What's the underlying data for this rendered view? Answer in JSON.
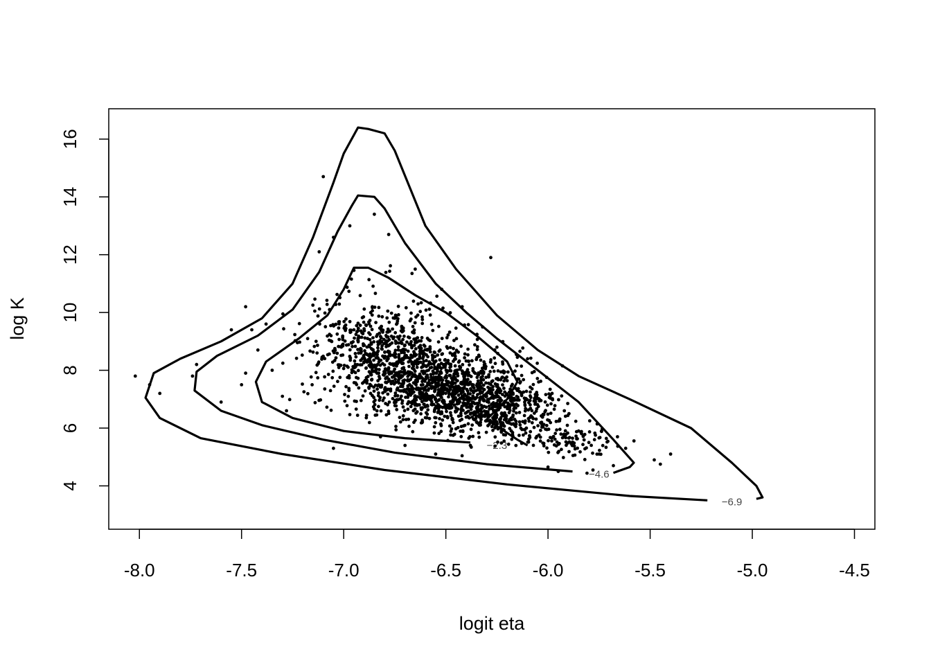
{
  "chart_data": {
    "type": "scatter",
    "title": "",
    "xlabel": "logit eta",
    "ylabel": "log K",
    "xlim": [
      -8.15,
      -4.4
    ],
    "ylim": [
      2.5,
      17.05
    ],
    "x_ticks": [
      -8.0,
      -7.5,
      -7.0,
      -6.5,
      -6.0,
      -5.5,
      -5.0,
      -4.5
    ],
    "x_tick_labels": [
      "-8.0",
      "-7.5",
      "-7.0",
      "-6.5",
      "-6.0",
      "-5.5",
      "-5.0",
      "-4.5"
    ],
    "y_ticks": [
      4,
      6,
      8,
      10,
      12,
      14,
      16
    ],
    "y_tick_labels": [
      "4",
      "6",
      "8",
      "10",
      "12",
      "14",
      "16"
    ],
    "grid": false,
    "legend": "none",
    "contours": [
      {
        "level_label": "−6.9",
        "label_at": [
          -5.1,
          3.45
        ],
        "points": [
          [
            -5.22,
            3.5
          ],
          [
            -5.6,
            3.65
          ],
          [
            -6.2,
            4.05
          ],
          [
            -6.8,
            4.55
          ],
          [
            -7.3,
            5.1
          ],
          [
            -7.7,
            5.65
          ],
          [
            -7.9,
            6.35
          ],
          [
            -7.97,
            7.05
          ],
          [
            -7.93,
            7.9
          ],
          [
            -7.8,
            8.4
          ],
          [
            -7.6,
            9.0
          ],
          [
            -7.4,
            9.8
          ],
          [
            -7.25,
            11.0
          ],
          [
            -7.15,
            12.6
          ],
          [
            -7.05,
            14.5
          ],
          [
            -7.0,
            15.5
          ],
          [
            -6.93,
            16.4
          ],
          [
            -6.88,
            16.35
          ],
          [
            -6.8,
            16.2
          ],
          [
            -6.75,
            15.6
          ],
          [
            -6.6,
            13.0
          ],
          [
            -6.45,
            11.5
          ],
          [
            -6.25,
            9.9
          ],
          [
            -6.05,
            8.7
          ],
          [
            -5.85,
            7.8
          ],
          [
            -5.6,
            7.0
          ],
          [
            -5.3,
            6.0
          ],
          [
            -5.1,
            4.8
          ],
          [
            -4.98,
            4.0
          ],
          [
            -4.95,
            3.6
          ],
          [
            -4.98,
            3.55
          ]
        ]
      },
      {
        "level_label": "−4.6",
        "label_at": [
          -5.75,
          4.4
        ],
        "points": [
          [
            -5.88,
            4.5
          ],
          [
            -6.3,
            4.75
          ],
          [
            -6.75,
            5.15
          ],
          [
            -7.1,
            5.6
          ],
          [
            -7.4,
            6.1
          ],
          [
            -7.6,
            6.6
          ],
          [
            -7.73,
            7.3
          ],
          [
            -7.72,
            7.95
          ],
          [
            -7.62,
            8.5
          ],
          [
            -7.42,
            9.2
          ],
          [
            -7.25,
            10.1
          ],
          [
            -7.12,
            11.4
          ],
          [
            -7.03,
            12.8
          ],
          [
            -6.96,
            13.7
          ],
          [
            -6.93,
            14.05
          ],
          [
            -6.85,
            14.0
          ],
          [
            -6.8,
            13.6
          ],
          [
            -6.7,
            12.4
          ],
          [
            -6.55,
            11.0
          ],
          [
            -6.4,
            10.0
          ],
          [
            -6.25,
            9.1
          ],
          [
            -6.05,
            8.0
          ],
          [
            -5.85,
            6.9
          ],
          [
            -5.68,
            5.6
          ],
          [
            -5.58,
            4.8
          ],
          [
            -5.6,
            4.65
          ],
          [
            -5.68,
            4.45
          ]
        ]
      },
      {
        "level_label": "−2.3",
        "label_at": [
          -6.25,
          5.4
        ],
        "points": [
          [
            -6.38,
            5.5
          ],
          [
            -6.7,
            5.65
          ],
          [
            -7.0,
            5.9
          ],
          [
            -7.25,
            6.35
          ],
          [
            -7.4,
            6.9
          ],
          [
            -7.43,
            7.6
          ],
          [
            -7.38,
            8.3
          ],
          [
            -7.22,
            9.1
          ],
          [
            -7.08,
            9.9
          ],
          [
            -7.0,
            10.8
          ],
          [
            -6.95,
            11.55
          ],
          [
            -6.88,
            11.55
          ],
          [
            -6.78,
            11.2
          ],
          [
            -6.65,
            10.6
          ],
          [
            -6.5,
            10.0
          ],
          [
            -6.35,
            9.2
          ],
          [
            -6.2,
            8.3
          ],
          [
            -6.15,
            7.6
          ],
          [
            -6.2,
            7.0
          ],
          [
            -6.3,
            6.3
          ],
          [
            -6.15,
            5.6
          ],
          [
            -6.1,
            5.4
          ]
        ]
      }
    ],
    "series": [
      {
        "points": [
          [
            -8.02,
            7.8
          ],
          [
            -7.95,
            7.5
          ],
          [
            -7.9,
            7.2
          ],
          [
            -7.72,
            8.2
          ],
          [
            -7.74,
            7.8
          ],
          [
            -7.6,
            6.9
          ],
          [
            -7.55,
            9.4
          ],
          [
            -7.48,
            10.2
          ],
          [
            -7.48,
            7.9
          ],
          [
            -7.5,
            7.5
          ],
          [
            -7.45,
            9.4
          ],
          [
            -7.42,
            8.7
          ],
          [
            -7.38,
            9.6
          ],
          [
            -7.35,
            8.0
          ],
          [
            -7.3,
            7.1
          ],
          [
            -7.28,
            6.6
          ],
          [
            -7.12,
            12.1
          ],
          [
            -7.1,
            14.7
          ],
          [
            -7.05,
            12.6
          ],
          [
            -7.05,
            5.3
          ],
          [
            -6.97,
            13.0
          ],
          [
            -6.85,
            13.4
          ],
          [
            -6.78,
            12.7
          ],
          [
            -6.65,
            11.5
          ],
          [
            -6.52,
            10.8
          ],
          [
            -6.42,
            10.2
          ],
          [
            -6.32,
            9.5
          ],
          [
            -6.25,
            8.8
          ],
          [
            -6.1,
            8.4
          ],
          [
            -5.98,
            7.2
          ],
          [
            -5.92,
            6.6
          ],
          [
            -5.85,
            5.9
          ],
          [
            -5.8,
            5.5
          ],
          [
            -5.75,
            5.1
          ],
          [
            -5.68,
            4.7
          ],
          [
            -5.62,
            5.3
          ],
          [
            -5.48,
            4.9
          ],
          [
            -5.45,
            4.75
          ],
          [
            -5.4,
            5.1
          ],
          [
            -5.66,
            5.7
          ],
          [
            -6.28,
            11.9
          ],
          [
            -6.15,
            8.45
          ],
          [
            -6.38,
            5.4
          ],
          [
            -6.55,
            5.1
          ],
          [
            -6.7,
            5.4
          ],
          [
            -6.82,
            5.7
          ],
          [
            -5.95,
            4.5
          ],
          [
            -5.78,
            4.55
          ],
          [
            -5.88,
            5.65
          ],
          [
            -6.0,
            4.65
          ]
        ]
      }
    ]
  }
}
